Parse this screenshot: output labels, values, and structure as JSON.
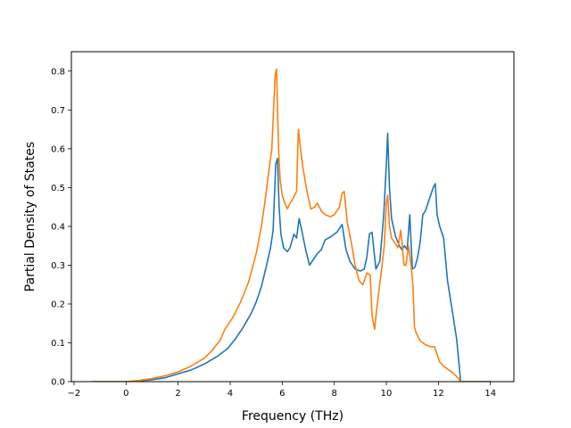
{
  "chart_data": {
    "type": "line",
    "title": "",
    "xlabel": "Frequency (THz)",
    "ylabel": "Partial Density of States",
    "xlim": [
      -2.1,
      14.9
    ],
    "ylim": [
      0.0,
      0.85
    ],
    "xticks": [
      -2,
      0,
      2,
      4,
      6,
      8,
      10,
      12,
      14
    ],
    "yticks": [
      0.0,
      0.1,
      0.2,
      0.3,
      0.4,
      0.5,
      0.6,
      0.7,
      0.8
    ],
    "grid": false,
    "legend": "none",
    "series": [
      {
        "color": "#1f77b4",
        "x": [
          -1.3,
          0.0,
          0.5,
          1.0,
          1.5,
          2.0,
          2.5,
          3.0,
          3.5,
          3.9,
          4.2,
          4.5,
          4.8,
          5.0,
          5.2,
          5.4,
          5.55,
          5.65,
          5.75,
          5.82,
          5.88,
          5.95,
          6.05,
          6.2,
          6.3,
          6.45,
          6.55,
          6.65,
          6.75,
          6.9,
          7.05,
          7.2,
          7.35,
          7.5,
          7.65,
          7.9,
          8.1,
          8.3,
          8.45,
          8.6,
          8.8,
          9.0,
          9.15,
          9.25,
          9.35,
          9.45,
          9.6,
          9.75,
          9.9,
          10.0,
          10.05,
          10.12,
          10.2,
          10.35,
          10.5,
          10.6,
          10.7,
          10.8,
          10.9,
          11.0,
          11.1,
          11.2,
          11.3,
          11.4,
          11.5,
          11.6,
          11.7,
          11.8,
          11.88,
          11.95,
          12.05,
          12.2,
          12.35,
          12.55,
          12.7,
          12.8,
          12.85,
          14.0
        ],
        "values": [
          0.0,
          0.0,
          0.002,
          0.005,
          0.01,
          0.02,
          0.03,
          0.045,
          0.065,
          0.085,
          0.11,
          0.14,
          0.175,
          0.205,
          0.245,
          0.3,
          0.345,
          0.39,
          0.56,
          0.575,
          0.45,
          0.38,
          0.345,
          0.335,
          0.345,
          0.38,
          0.37,
          0.42,
          0.39,
          0.34,
          0.3,
          0.315,
          0.33,
          0.34,
          0.365,
          0.375,
          0.385,
          0.405,
          0.34,
          0.31,
          0.29,
          0.285,
          0.29,
          0.32,
          0.38,
          0.385,
          0.29,
          0.31,
          0.43,
          0.56,
          0.64,
          0.5,
          0.42,
          0.375,
          0.35,
          0.34,
          0.35,
          0.34,
          0.43,
          0.29,
          0.295,
          0.32,
          0.36,
          0.43,
          0.44,
          0.46,
          0.48,
          0.5,
          0.51,
          0.43,
          0.4,
          0.37,
          0.26,
          0.175,
          0.11,
          0.04,
          0.0,
          0.0
        ]
      },
      {
        "color": "#ff7f0e",
        "x": [
          -1.3,
          0.0,
          0.5,
          1.0,
          1.5,
          2.0,
          2.5,
          3.0,
          3.3,
          3.6,
          3.8,
          4.1,
          4.4,
          4.7,
          5.0,
          5.2,
          5.35,
          5.5,
          5.6,
          5.68,
          5.73,
          5.78,
          5.82,
          5.86,
          5.92,
          6.0,
          6.1,
          6.2,
          6.3,
          6.4,
          6.55,
          6.62,
          6.7,
          6.8,
          6.95,
          7.1,
          7.25,
          7.35,
          7.5,
          7.65,
          7.85,
          8.0,
          8.1,
          8.2,
          8.3,
          8.38,
          8.5,
          8.65,
          8.8,
          8.95,
          9.1,
          9.25,
          9.38,
          9.45,
          9.55,
          9.65,
          9.8,
          9.92,
          10.0,
          10.05,
          10.12,
          10.2,
          10.3,
          10.45,
          10.55,
          10.6,
          10.68,
          10.75,
          10.85,
          10.95,
          11.02,
          11.08,
          11.15,
          11.3,
          11.5,
          11.7,
          11.85,
          11.95,
          12.05,
          12.2,
          12.4,
          12.6,
          12.75,
          12.85,
          14.0
        ],
        "values": [
          0.0,
          0.0,
          0.003,
          0.008,
          0.015,
          0.025,
          0.04,
          0.06,
          0.08,
          0.105,
          0.135,
          0.165,
          0.205,
          0.255,
          0.33,
          0.4,
          0.47,
          0.55,
          0.6,
          0.72,
          0.79,
          0.805,
          0.7,
          0.6,
          0.52,
          0.48,
          0.46,
          0.445,
          0.46,
          0.47,
          0.49,
          0.65,
          0.6,
          0.55,
          0.49,
          0.445,
          0.45,
          0.46,
          0.44,
          0.43,
          0.425,
          0.43,
          0.44,
          0.45,
          0.485,
          0.49,
          0.41,
          0.36,
          0.3,
          0.26,
          0.25,
          0.28,
          0.275,
          0.17,
          0.135,
          0.2,
          0.28,
          0.35,
          0.46,
          0.48,
          0.4,
          0.37,
          0.36,
          0.345,
          0.39,
          0.36,
          0.3,
          0.3,
          0.35,
          0.3,
          0.25,
          0.14,
          0.125,
          0.105,
          0.095,
          0.09,
          0.09,
          0.07,
          0.05,
          0.04,
          0.03,
          0.02,
          0.01,
          0.0,
          0.0
        ]
      }
    ]
  }
}
